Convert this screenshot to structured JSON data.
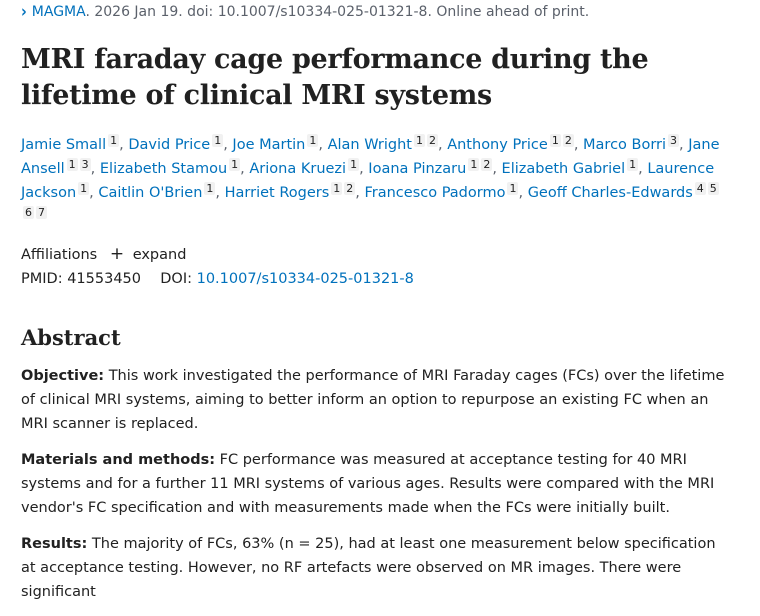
{
  "citation": {
    "journal": "MAGMA",
    "details": ". 2026 Jan 19. doi: 10.1007/s10334-025-01321-8. Online ahead of print."
  },
  "title": "MRI faraday cage performance during the lifetime of clinical MRI systems",
  "authors": [
    {
      "name": "Jamie Small",
      "affiliations": [
        "1"
      ]
    },
    {
      "name": "David Price",
      "affiliations": [
        "1"
      ]
    },
    {
      "name": "Joe Martin",
      "affiliations": [
        "1"
      ]
    },
    {
      "name": "Alan Wright",
      "affiliations": [
        "1",
        "2"
      ]
    },
    {
      "name": "Anthony Price",
      "affiliations": [
        "1",
        "2"
      ]
    },
    {
      "name": "Marco Borri",
      "affiliations": [
        "3"
      ]
    },
    {
      "name": "Jane Ansell",
      "affiliations": [
        "1",
        "3"
      ]
    },
    {
      "name": "Elizabeth Stamou",
      "affiliations": [
        "1"
      ]
    },
    {
      "name": "Ariona Kruezi",
      "affiliations": [
        "1"
      ]
    },
    {
      "name": "Ioana Pinzaru",
      "affiliations": [
        "1",
        "2"
      ]
    },
    {
      "name": "Elizabeth Gabriel",
      "affiliations": [
        "1"
      ]
    },
    {
      "name": "Laurence Jackson",
      "affiliations": [
        "1"
      ]
    },
    {
      "name": "Caitlin O'Brien",
      "affiliations": [
        "1"
      ]
    },
    {
      "name": "Harriet Rogers",
      "affiliations": [
        "1",
        "2"
      ]
    },
    {
      "name": "Francesco Padormo",
      "affiliations": [
        "1"
      ]
    },
    {
      "name": "Geoff Charles-Edwards",
      "affiliations": [
        "4",
        "5",
        "6",
        "7"
      ]
    }
  ],
  "affiliations_toggle": {
    "label": "Affiliations",
    "icon": "plus-icon",
    "action": "expand"
  },
  "identifiers": {
    "pmid_label": "PMID:",
    "pmid": "41553450",
    "doi_label": "DOI:",
    "doi": "10.1007/s10334-025-01321-8"
  },
  "abstract": {
    "heading": "Abstract",
    "sections": [
      {
        "label": "Objective:",
        "text": " This work investigated the performance of MRI Faraday cages (FCs) over the lifetime of clinical MRI systems, aiming to better inform an option to repurpose an existing FC when an MRI scanner is replaced."
      },
      {
        "label": "Materials and methods:",
        "text": " FC performance was measured at acceptance testing for 40 MRI systems and for a further 11 MRI systems of various ages. Results were compared with the MRI vendor's FC specification and with measurements made when the FCs were initially built."
      },
      {
        "label": "Results:",
        "text": " The majority of FCs, 63% (n = 25), had at least one measurement below specification at acceptance testing. However, no RF artefacts were observed on MR images. There were significant"
      }
    ]
  }
}
